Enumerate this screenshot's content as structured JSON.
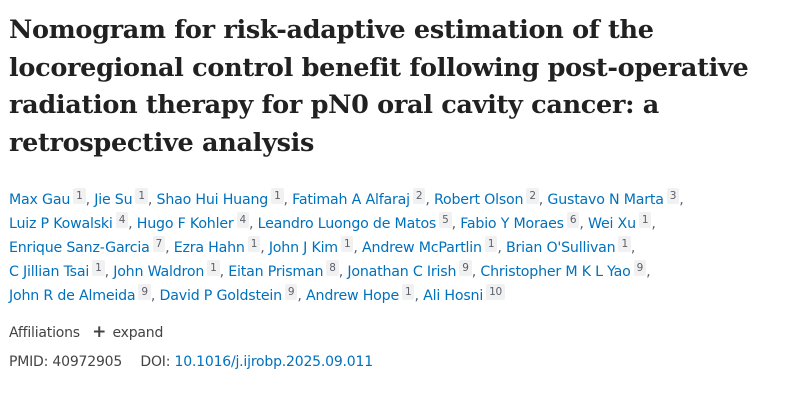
{
  "article": {
    "title": "Nomogram for risk-adaptive estimation of the locoregional control benefit following post-operative radiation therapy for pN0 oral cavity cancer: a retrospective analysis",
    "title_lines": [
      "Nomogram for risk-adaptive estimation of the",
      "locoregional control benefit following post-operative",
      "radiation therapy for pN0 oral cavity cancer: a",
      "retrospective analysis"
    ],
    "authors": [
      {
        "name": "Max Gau",
        "affiliation": "1"
      },
      {
        "name": "Jie Su",
        "affiliation": "1"
      },
      {
        "name": "Shao Hui Huang",
        "affiliation": "1"
      },
      {
        "name": "Fatimah A Alfaraj",
        "affiliation": "2"
      },
      {
        "name": "Robert Olson",
        "affiliation": "2"
      },
      {
        "name": "Gustavo N Marta",
        "affiliation": "3"
      },
      {
        "name": "Luiz P Kowalski",
        "affiliation": "4"
      },
      {
        "name": "Hugo F Kohler",
        "affiliation": "4"
      },
      {
        "name": "Leandro Luongo de Matos",
        "affiliation": "5"
      },
      {
        "name": "Fabio Y Moraes",
        "affiliation": "6"
      },
      {
        "name": "Wei Xu",
        "affiliation": "1"
      },
      {
        "name": "Enrique Sanz-Garcia",
        "affiliation": "7"
      },
      {
        "name": "Ezra Hahn",
        "affiliation": "1"
      },
      {
        "name": "John J Kim",
        "affiliation": "1"
      },
      {
        "name": "Andrew McPartlin",
        "affiliation": "1"
      },
      {
        "name": "Brian O'Sullivan",
        "affiliation": "1"
      },
      {
        "name": "C Jillian Tsai",
        "affiliation": "1"
      },
      {
        "name": "John Waldron",
        "affiliation": "1"
      },
      {
        "name": "Eitan Prisman",
        "affiliation": "8"
      },
      {
        "name": "Jonathan C Irish",
        "affiliation": "9"
      },
      {
        "name": "Christopher M K L Yao",
        "affiliation": "9"
      },
      {
        "name": "John R de Almeida",
        "affiliation": "9"
      },
      {
        "name": "David P Goldstein",
        "affiliation": "9"
      },
      {
        "name": "Andrew Hope",
        "affiliation": "1"
      },
      {
        "name": "Ali Hosni",
        "affiliation": "10"
      }
    ],
    "author_line_breaks_after": [
      5,
      10,
      15,
      20
    ],
    "separator": ",",
    "affiliations_label": "Affiliations",
    "expand_icon": "plus-icon",
    "expand_label": "expand",
    "pmid_label": "PMID:",
    "pmid": "40972905",
    "doi_label": "DOI:",
    "doi": "10.1016/j.ijrobp.2025.09.011"
  },
  "colors": {
    "title": "#212121",
    "link": "#0071bc",
    "text": "#444444",
    "badge_bg": "#f1f1f1",
    "badge_text": "#5b616b"
  }
}
